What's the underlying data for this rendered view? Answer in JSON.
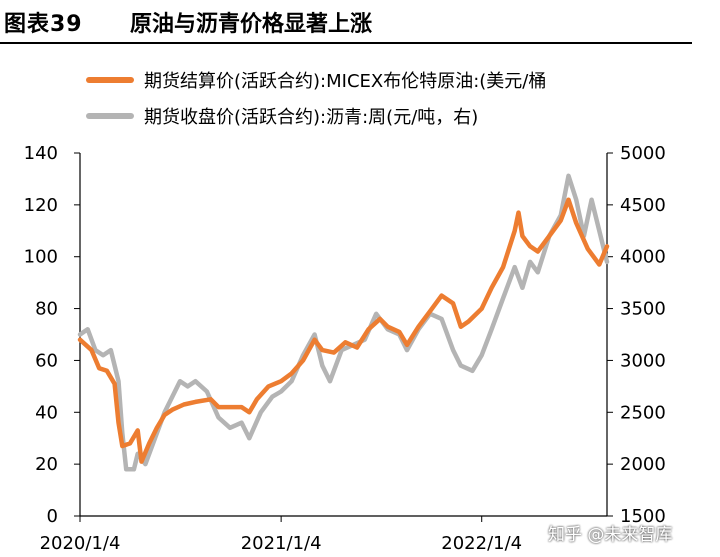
{
  "title": {
    "number": "图表39",
    "text": "原油与沥青价格显著上涨"
  },
  "watermark": "知乎 @未来智库",
  "chart_data": {
    "type": "line",
    "x_ticks": [
      "2020/1/4",
      "2021/1/4",
      "2022/1/4"
    ],
    "x_range": [
      "2020-01-04",
      "2022-08-20"
    ],
    "y_left": {
      "ticks": [
        0,
        20,
        40,
        60,
        80,
        100,
        120,
        140
      ],
      "range": [
        0,
        140
      ]
    },
    "y_right": {
      "ticks": [
        1500,
        2000,
        2500,
        3000,
        3500,
        4000,
        4500,
        5000
      ],
      "range": [
        1500,
        5000
      ]
    },
    "series": [
      {
        "name": "期货结算价(活跃合约):MICEX布伦特原油:(美元/桶",
        "axis": "left",
        "color": "#ED7D31",
        "points": [
          [
            "2020-01-04",
            68
          ],
          [
            "2020-01-25",
            64
          ],
          [
            "2020-02-08",
            57
          ],
          [
            "2020-02-22",
            56
          ],
          [
            "2020-03-07",
            51
          ],
          [
            "2020-03-14",
            36
          ],
          [
            "2020-03-21",
            27
          ],
          [
            "2020-04-04",
            28
          ],
          [
            "2020-04-18",
            33
          ],
          [
            "2020-04-25",
            21
          ],
          [
            "2020-05-09",
            28
          ],
          [
            "2020-05-23",
            34
          ],
          [
            "2020-06-06",
            39
          ],
          [
            "2020-06-20",
            41
          ],
          [
            "2020-07-11",
            43
          ],
          [
            "2020-08-01",
            44
          ],
          [
            "2020-08-29",
            45
          ],
          [
            "2020-09-12",
            42
          ],
          [
            "2020-10-03",
            42
          ],
          [
            "2020-10-24",
            42
          ],
          [
            "2020-11-07",
            40
          ],
          [
            "2020-11-21",
            45
          ],
          [
            "2020-12-12",
            50
          ],
          [
            "2021-01-04",
            52
          ],
          [
            "2021-01-23",
            55
          ],
          [
            "2021-02-13",
            60
          ],
          [
            "2021-03-06",
            68
          ],
          [
            "2021-03-20",
            64
          ],
          [
            "2021-04-10",
            63
          ],
          [
            "2021-05-01",
            67
          ],
          [
            "2021-05-22",
            65
          ],
          [
            "2021-06-12",
            72
          ],
          [
            "2021-07-03",
            76
          ],
          [
            "2021-07-17",
            73
          ],
          [
            "2021-08-07",
            71
          ],
          [
            "2021-08-21",
            66
          ],
          [
            "2021-09-11",
            73
          ],
          [
            "2021-10-02",
            79
          ],
          [
            "2021-10-23",
            85
          ],
          [
            "2021-11-13",
            82
          ],
          [
            "2021-11-27",
            73
          ],
          [
            "2021-12-11",
            75
          ],
          [
            "2022-01-04",
            80
          ],
          [
            "2022-01-22",
            88
          ],
          [
            "2022-02-12",
            96
          ],
          [
            "2022-03-05",
            110
          ],
          [
            "2022-03-12",
            117
          ],
          [
            "2022-03-19",
            108
          ],
          [
            "2022-04-02",
            104
          ],
          [
            "2022-04-16",
            102
          ],
          [
            "2022-05-07",
            108
          ],
          [
            "2022-05-28",
            114
          ],
          [
            "2022-06-11",
            122
          ],
          [
            "2022-06-25",
            113
          ],
          [
            "2022-07-16",
            103
          ],
          [
            "2022-08-06",
            97
          ],
          [
            "2022-08-20",
            104
          ]
        ]
      },
      {
        "name": "期货收盘价(活跃合约):沥青:周(元/吨，右)",
        "axis": "right",
        "color": "#B4B4B4",
        "points": [
          [
            "2020-01-04",
            3250
          ],
          [
            "2020-01-18",
            3300
          ],
          [
            "2020-02-01",
            3100
          ],
          [
            "2020-02-15",
            3050
          ],
          [
            "2020-02-29",
            3100
          ],
          [
            "2020-03-14",
            2800
          ],
          [
            "2020-03-21",
            2300
          ],
          [
            "2020-03-28",
            1950
          ],
          [
            "2020-04-11",
            1950
          ],
          [
            "2020-04-18",
            2100
          ],
          [
            "2020-05-02",
            2000
          ],
          [
            "2020-05-16",
            2200
          ],
          [
            "2020-06-06",
            2500
          ],
          [
            "2020-06-20",
            2650
          ],
          [
            "2020-07-04",
            2800
          ],
          [
            "2020-07-18",
            2750
          ],
          [
            "2020-08-01",
            2800
          ],
          [
            "2020-08-22",
            2700
          ],
          [
            "2020-09-12",
            2450
          ],
          [
            "2020-10-03",
            2350
          ],
          [
            "2020-10-24",
            2400
          ],
          [
            "2020-11-07",
            2250
          ],
          [
            "2020-11-28",
            2500
          ],
          [
            "2020-12-19",
            2650
          ],
          [
            "2021-01-04",
            2700
          ],
          [
            "2021-01-23",
            2800
          ],
          [
            "2021-02-13",
            3050
          ],
          [
            "2021-03-06",
            3250
          ],
          [
            "2021-03-20",
            2950
          ],
          [
            "2021-04-03",
            2800
          ],
          [
            "2021-04-24",
            3100
          ],
          [
            "2021-05-15",
            3150
          ],
          [
            "2021-06-05",
            3200
          ],
          [
            "2021-06-26",
            3450
          ],
          [
            "2021-07-17",
            3300
          ],
          [
            "2021-08-07",
            3250
          ],
          [
            "2021-08-21",
            3100
          ],
          [
            "2021-09-11",
            3300
          ],
          [
            "2021-10-02",
            3450
          ],
          [
            "2021-10-23",
            3400
          ],
          [
            "2021-11-13",
            3100
          ],
          [
            "2021-11-27",
            2950
          ],
          [
            "2021-12-18",
            2900
          ],
          [
            "2022-01-04",
            3050
          ],
          [
            "2022-01-22",
            3300
          ],
          [
            "2022-02-12",
            3600
          ],
          [
            "2022-03-05",
            3900
          ],
          [
            "2022-03-19",
            3700
          ],
          [
            "2022-04-02",
            3950
          ],
          [
            "2022-04-16",
            3850
          ],
          [
            "2022-05-07",
            4200
          ],
          [
            "2022-05-28",
            4400
          ],
          [
            "2022-06-11",
            4780
          ],
          [
            "2022-06-25",
            4550
          ],
          [
            "2022-07-09",
            4200
          ],
          [
            "2022-07-23",
            4550
          ],
          [
            "2022-08-06",
            4250
          ],
          [
            "2022-08-20",
            3950
          ]
        ]
      }
    ]
  }
}
